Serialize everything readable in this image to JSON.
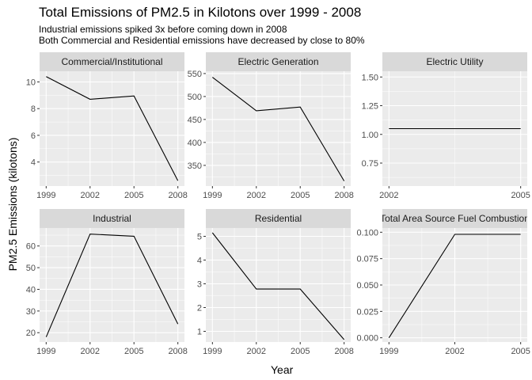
{
  "title": "Total Emissions of PM2.5 in Kilotons over 1999 - 2008",
  "subtitles": [
    "Industrial emissions spiked 3x before coming down in 2008",
    "Both Commercial and Residential emissions have decreased by close to 80%"
  ],
  "colors": {
    "panel_background": "#ebebeb",
    "strip_background": "#d9d9d9",
    "grid": "#ffffff",
    "line": "#000000",
    "tick_text": "#4d4d4d"
  },
  "chart_data": {
    "type": "line",
    "xlabel": "Year",
    "ylabel": "PM2.5 Emissions (kilotons)",
    "grid": true,
    "legend": "none",
    "facets": [
      {
        "name": "Commercial/Institutional",
        "x": [
          1999,
          2002,
          2005,
          2008
        ],
        "values": [
          10.4,
          8.7,
          8.95,
          2.6
        ],
        "xlim": [
          1998.55,
          2008.45
        ],
        "ylim": [
          2.2,
          10.8
        ],
        "xticks": [
          "1999",
          "2002",
          "2005",
          "2008"
        ],
        "yticks": [
          4,
          6,
          8,
          10
        ],
        "ytick_labels": [
          "4",
          "6",
          "8",
          "10"
        ]
      },
      {
        "name": "Electric Generation",
        "x": [
          1999,
          2002,
          2005,
          2008
        ],
        "values": [
          542,
          469,
          477,
          316
        ],
        "xlim": [
          1998.55,
          2008.45
        ],
        "ylim": [
          305,
          555
        ],
        "xticks": [
          "1999",
          "2002",
          "2005",
          "2008"
        ],
        "yticks": [
          350,
          400,
          450,
          500,
          550
        ],
        "ytick_labels": [
          "350",
          "400",
          "450",
          "500",
          "550"
        ]
      },
      {
        "name": "Electric Utility",
        "x": [
          2002,
          2005
        ],
        "values": [
          1.05,
          1.05
        ],
        "xlim": [
          2001.85,
          2005.15
        ],
        "ylim": [
          0.55,
          1.55
        ],
        "xticks": [
          "2002",
          "2005"
        ],
        "yticks": [
          0.75,
          1.0,
          1.25,
          1.5
        ],
        "ytick_labels": [
          "0.75",
          "1.00",
          "1.25",
          "1.50"
        ]
      },
      {
        "name": "Industrial",
        "x": [
          1999,
          2002,
          2005,
          2008
        ],
        "values": [
          18,
          65.5,
          64.5,
          24
        ],
        "xlim": [
          1998.55,
          2008.45
        ],
        "ylim": [
          15.7,
          68.3
        ],
        "xticks": [
          "1999",
          "2002",
          "2005",
          "2008"
        ],
        "yticks": [
          20,
          30,
          40,
          50,
          60
        ],
        "ytick_labels": [
          "20",
          "30",
          "40",
          "50",
          "60"
        ]
      },
      {
        "name": "Residential",
        "x": [
          1999,
          2002,
          2005,
          2008
        ],
        "values": [
          5.15,
          2.78,
          2.78,
          0.65
        ],
        "xlim": [
          1998.55,
          2008.45
        ],
        "ylim": [
          0.55,
          5.35
        ],
        "xticks": [
          "1999",
          "2002",
          "2005",
          "2008"
        ],
        "yticks": [
          1,
          2,
          3,
          4,
          5
        ],
        "ytick_labels": [
          "1",
          "2",
          "3",
          "4",
          "5"
        ]
      },
      {
        "name": "Total Area Source Fuel Combustion",
        "x": [
          1999,
          2002,
          2005
        ],
        "values": [
          0.0,
          0.098,
          0.098
        ],
        "xlim": [
          1998.7,
          2005.3
        ],
        "ylim": [
          -0.004,
          0.104
        ],
        "xticks": [
          "1999",
          "2002",
          "2005"
        ],
        "yticks": [
          0,
          0.025,
          0.05,
          0.075,
          0.1
        ],
        "ytick_labels": [
          "0.000",
          "0.025",
          "0.050",
          "0.075",
          "0.100"
        ]
      }
    ]
  }
}
